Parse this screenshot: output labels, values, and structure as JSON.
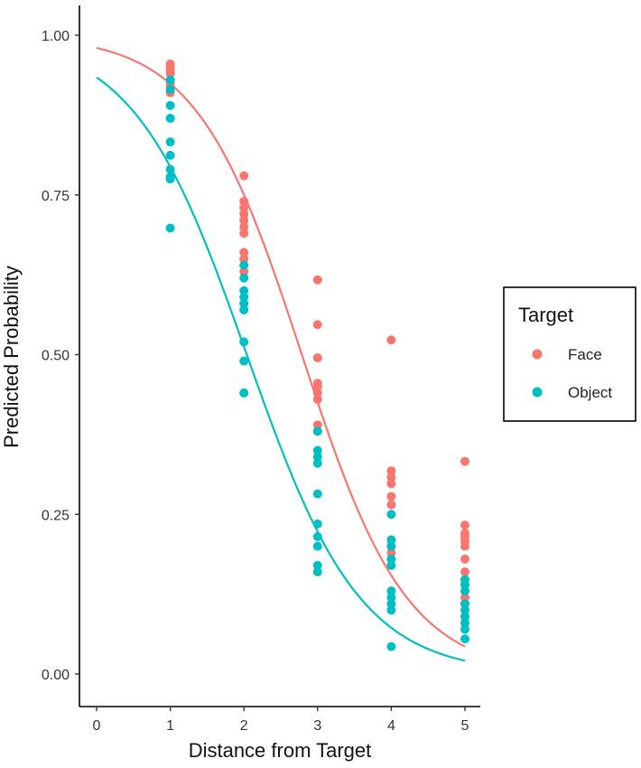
{
  "chart_data": {
    "type": "scatter",
    "xlabel": "Distance from Target",
    "ylabel": "Predicted Probability",
    "x_ticks": [
      "0",
      "1",
      "2",
      "3",
      "4",
      "5"
    ],
    "y_ticks": [
      "0.00",
      "0.25",
      "0.50",
      "0.75",
      "1.00"
    ],
    "xlim": [
      -0.2,
      5.2
    ],
    "ylim": [
      -0.05,
      1.05
    ],
    "grid": false,
    "legend": {
      "title": "Target",
      "position": "right"
    },
    "series": [
      {
        "name": "Face",
        "color": "#F8766D",
        "points": [
          [
            1,
            0.955
          ],
          [
            1,
            0.95
          ],
          [
            1,
            0.945
          ],
          [
            1,
            0.94
          ],
          [
            1,
            0.93
          ],
          [
            1,
            0.925
          ],
          [
            1,
            0.92
          ],
          [
            1,
            0.91
          ],
          [
            2,
            0.78
          ],
          [
            2,
            0.74
          ],
          [
            2,
            0.73
          ],
          [
            2,
            0.72
          ],
          [
            2,
            0.71
          ],
          [
            2,
            0.7
          ],
          [
            2,
            0.69
          ],
          [
            2,
            0.66
          ],
          [
            2,
            0.65
          ],
          [
            2,
            0.63
          ],
          [
            3,
            0.617
          ],
          [
            3,
            0.547
          ],
          [
            3,
            0.495
          ],
          [
            3,
            0.455
          ],
          [
            3,
            0.45
          ],
          [
            3,
            0.44
          ],
          [
            3,
            0.43
          ],
          [
            3,
            0.39
          ],
          [
            3,
            0.38
          ],
          [
            4,
            0.523
          ],
          [
            4,
            0.318
          ],
          [
            4,
            0.308
          ],
          [
            4,
            0.298
          ],
          [
            4,
            0.278
          ],
          [
            4,
            0.265
          ],
          [
            4,
            0.21
          ],
          [
            4,
            0.2
          ],
          [
            4,
            0.19
          ],
          [
            5,
            0.333
          ],
          [
            5,
            0.233
          ],
          [
            5,
            0.22
          ],
          [
            5,
            0.215
          ],
          [
            5,
            0.208
          ],
          [
            5,
            0.2
          ],
          [
            5,
            0.18
          ],
          [
            5,
            0.16
          ],
          [
            5,
            0.14
          ],
          [
            5,
            0.12
          ],
          [
            5,
            0.11
          ]
        ],
        "curve": {
          "form": "logistic",
          "intercept": 3.9,
          "slope": -1.4
        }
      },
      {
        "name": "Object",
        "color": "#00BFC4",
        "points": [
          [
            1,
            0.93
          ],
          [
            1,
            0.915
          ],
          [
            1,
            0.89
          ],
          [
            1,
            0.87
          ],
          [
            1,
            0.833
          ],
          [
            1,
            0.812
          ],
          [
            1,
            0.79
          ],
          [
            1,
            0.778
          ],
          [
            1,
            0.775
          ],
          [
            1,
            0.698
          ],
          [
            2,
            0.64
          ],
          [
            2,
            0.62
          ],
          [
            2,
            0.6
          ],
          [
            2,
            0.59
          ],
          [
            2,
            0.58
          ],
          [
            2,
            0.57
          ],
          [
            2,
            0.52
          ],
          [
            2,
            0.49
          ],
          [
            2,
            0.44
          ],
          [
            3,
            0.38
          ],
          [
            3,
            0.35
          ],
          [
            3,
            0.34
          ],
          [
            3,
            0.33
          ],
          [
            3,
            0.282
          ],
          [
            3,
            0.235
          ],
          [
            3,
            0.215
          ],
          [
            3,
            0.2
          ],
          [
            3,
            0.17
          ],
          [
            3,
            0.16
          ],
          [
            4,
            0.25
          ],
          [
            4,
            0.21
          ],
          [
            4,
            0.2
          ],
          [
            4,
            0.18
          ],
          [
            4,
            0.17
          ],
          [
            4,
            0.13
          ],
          [
            4,
            0.12
          ],
          [
            4,
            0.11
          ],
          [
            4,
            0.1
          ],
          [
            4,
            0.043
          ],
          [
            5,
            0.148
          ],
          [
            5,
            0.14
          ],
          [
            5,
            0.13
          ],
          [
            5,
            0.11
          ],
          [
            5,
            0.1
          ],
          [
            5,
            0.09
          ],
          [
            5,
            0.08
          ],
          [
            5,
            0.07
          ],
          [
            5,
            0.055
          ]
        ],
        "curve": {
          "form": "logistic",
          "intercept": 2.65,
          "slope": -1.3
        }
      }
    ]
  }
}
